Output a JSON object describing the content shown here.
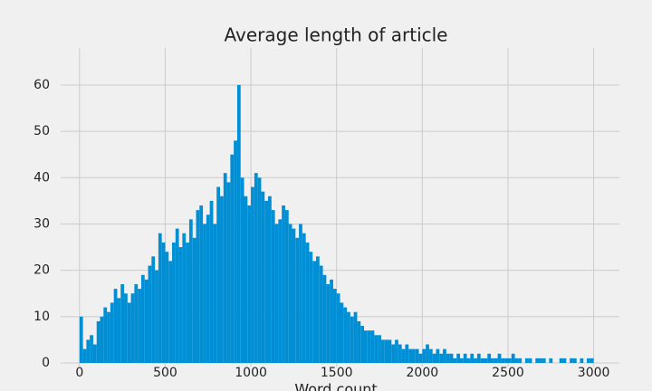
{
  "chart_data": {
    "type": "histogram",
    "title": "Average length of article",
    "xlabel": "Word count",
    "color": "#008fd5",
    "grid": true,
    "xlim": [
      -110,
      3150
    ],
    "ylim": [
      0,
      68
    ],
    "xticks": [
      0,
      500,
      1000,
      1500,
      2000,
      2500,
      3000
    ],
    "yticks": [
      0,
      10,
      20,
      30,
      40,
      50,
      60
    ],
    "bins": [
      0,
      20,
      40,
      60,
      80,
      100,
      120,
      140,
      160,
      180,
      200,
      220,
      240,
      260,
      280,
      300,
      320,
      340,
      360,
      380,
      400,
      420,
      440,
      460,
      480,
      500,
      520,
      540,
      560,
      580,
      600,
      620,
      640,
      660,
      680,
      700,
      720,
      740,
      760,
      780,
      800,
      820,
      840,
      860,
      880,
      900,
      920,
      940,
      960,
      980,
      1000,
      1020,
      1040,
      1060,
      1080,
      1100,
      1120,
      1140,
      1160,
      1180,
      1200,
      1220,
      1240,
      1260,
      1280,
      1300,
      1320,
      1340,
      1360,
      1380,
      1400,
      1420,
      1440,
      1460,
      1480,
      1500,
      1520,
      1540,
      1560,
      1580,
      1600,
      1620,
      1640,
      1660,
      1680,
      1700,
      1720,
      1740,
      1760,
      1780,
      1800,
      1820,
      1840,
      1860,
      1880,
      1900,
      1920,
      1940,
      1960,
      1980,
      2000,
      2020,
      2040,
      2060,
      2080,
      2100,
      2120,
      2140,
      2160,
      2180,
      2200,
      2220,
      2240,
      2260,
      2280,
      2300,
      2320,
      2340,
      2360,
      2380,
      2400,
      2420,
      2440,
      2460,
      2480,
      2500,
      2520,
      2540,
      2560,
      2580,
      2600,
      2620,
      2640,
      2660,
      2680,
      2700,
      2720,
      2740,
      2760,
      2780,
      2800,
      2820,
      2840,
      2860,
      2880,
      2900,
      2920,
      2940,
      2960,
      2980,
      3000
    ],
    "values": [
      10,
      3,
      5,
      6,
      4,
      9,
      10,
      12,
      11,
      13,
      16,
      14,
      17,
      15,
      13,
      15,
      17,
      16,
      19,
      18,
      21,
      23,
      20,
      28,
      26,
      24,
      22,
      26,
      29,
      25,
      28,
      26,
      31,
      27,
      33,
      34,
      30,
      32,
      35,
      30,
      38,
      36,
      41,
      39,
      45,
      48,
      60,
      40,
      36,
      34,
      38,
      41,
      40,
      37,
      35,
      36,
      33,
      30,
      31,
      34,
      33,
      30,
      29,
      27,
      30,
      28,
      26,
      24,
      22,
      23,
      21,
      19,
      17,
      18,
      16,
      15,
      13,
      12,
      11,
      10,
      11,
      9,
      8,
      7,
      7,
      7,
      6,
      6,
      5,
      5,
      5,
      4,
      5,
      4,
      3,
      4,
      3,
      3,
      3,
      2,
      3,
      4,
      3,
      2,
      3,
      2,
      3,
      2,
      2,
      1,
      2,
      1,
      2,
      1,
      2,
      1,
      2,
      1,
      1,
      2,
      1,
      1,
      2,
      1,
      1,
      1,
      2,
      1,
      1,
      0,
      1,
      1,
      0,
      1,
      1,
      1,
      0,
      1,
      0,
      0,
      1,
      1,
      0,
      1,
      1,
      0,
      1,
      0,
      1,
      1
    ]
  }
}
